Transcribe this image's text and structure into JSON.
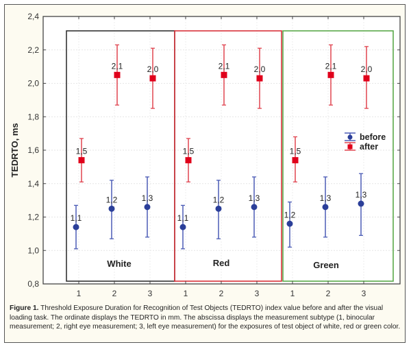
{
  "chart_data": {
    "type": "scatter",
    "subtype": "error-bar",
    "ylabel": "TEDRTO, ms",
    "xlabel": "",
    "ylim": [
      0.8,
      2.4
    ],
    "yticks": [
      "0,8",
      "1,0",
      "1,2",
      "1,4",
      "1,6",
      "1,8",
      "2,0",
      "2,2",
      "2,4"
    ],
    "ytick_values": [
      0.8,
      1.0,
      1.2,
      1.4,
      1.6,
      1.8,
      2.0,
      2.2,
      2.4
    ],
    "xticks": [
      "1",
      "2",
      "3",
      "1",
      "2",
      "3",
      "1",
      "2",
      "3"
    ],
    "grid": true,
    "legend": {
      "position": "right",
      "entries": [
        "before",
        "after"
      ]
    },
    "groups": [
      {
        "name": "White",
        "border_color": "#333333"
      },
      {
        "name": "Red",
        "border_color": "#d9323a"
      },
      {
        "name": "Green",
        "border_color": "#5aa84a"
      }
    ],
    "series": [
      {
        "name": "before",
        "color": "#2b3f99",
        "bar_color": "#4a5bb5",
        "marker": "circle",
        "values": [
          1.14,
          1.25,
          1.26,
          1.14,
          1.25,
          1.26,
          1.16,
          1.26,
          1.28
        ],
        "lower": [
          1.01,
          1.07,
          1.08,
          1.01,
          1.07,
          1.08,
          1.02,
          1.08,
          1.09
        ],
        "upper": [
          1.27,
          1.42,
          1.44,
          1.27,
          1.42,
          1.44,
          1.29,
          1.44,
          1.46
        ],
        "labels": [
          "1,1",
          "1,2",
          "1,3",
          "1,1",
          "1,2",
          "1,3",
          "1,2",
          "1,3",
          "1,3"
        ]
      },
      {
        "name": "after",
        "color": "#e0001b",
        "bar_color": "#e0444f",
        "marker": "square",
        "values": [
          1.54,
          2.05,
          2.03,
          1.54,
          2.05,
          2.03,
          1.54,
          2.05,
          2.03
        ],
        "lower": [
          1.41,
          1.87,
          1.85,
          1.41,
          1.87,
          1.85,
          1.41,
          1.87,
          1.85
        ],
        "upper": [
          1.67,
          2.23,
          2.21,
          1.67,
          2.23,
          2.21,
          1.68,
          2.23,
          2.22
        ],
        "labels": [
          "1,5",
          "2,1",
          "2,0",
          "1,5",
          "2,1",
          "2,0",
          "1,5",
          "2,1",
          "2,0"
        ]
      }
    ]
  },
  "caption": {
    "figure_label": "Figure 1.",
    "text": " Threshold Exposure Duration for Recognition of Test Objects (TEDRTO) index value before and after the visual loading task. The ordinate displays the TEDRTO in mm. The abscissa displays the measurement subtype (1, binocular measurement; 2, right eye measurement; 3, left eye measurement) for the exposures of test object of white, red or green color."
  }
}
